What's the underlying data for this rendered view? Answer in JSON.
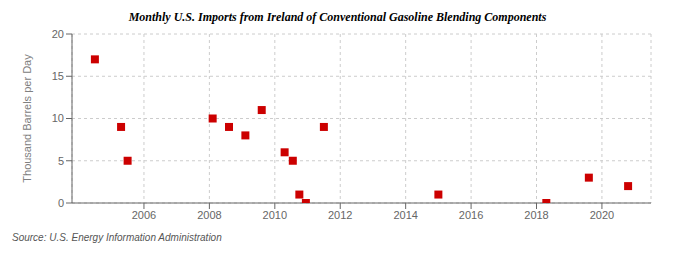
{
  "chart_data": {
    "type": "scatter",
    "title": "Monthly U.S. Imports from Ireland of Conventional Gasoline Blending Components",
    "ylabel": "Thousand Barrels per Day",
    "annotations": [
      "Source: U.S. Energy Information Administration"
    ],
    "x": [
      2004.5,
      2005.3,
      2005.5,
      2008.1,
      2008.6,
      2009.1,
      2009.6,
      2010.3,
      2010.55,
      2010.75,
      2010.95,
      2011.5,
      2015.0,
      2018.3,
      2019.6,
      2020.8
    ],
    "values": [
      17,
      9,
      5,
      10,
      9,
      8,
      11,
      6,
      5,
      1,
      0,
      9,
      1,
      0,
      3,
      2
    ],
    "color": "#cc0000",
    "marker": "square",
    "xlim": [
      2003.8,
      2021.5
    ],
    "ylim": [
      0,
      20
    ],
    "xticks": [
      2006,
      2008,
      2010,
      2012,
      2014,
      2016,
      2018,
      2020
    ],
    "yticks": [
      0,
      5,
      10,
      15,
      20
    ],
    "grid": true
  }
}
